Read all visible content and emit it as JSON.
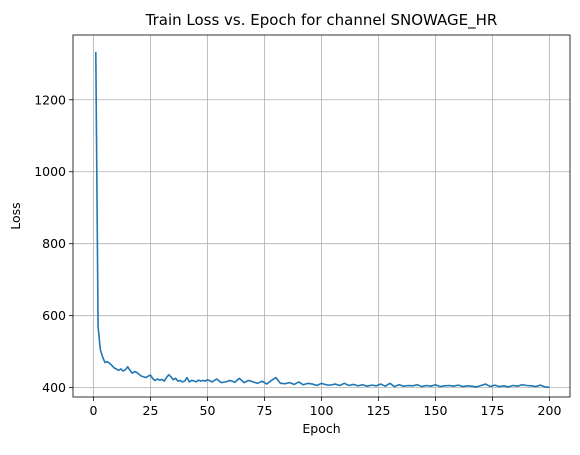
{
  "chart_data": {
    "type": "line",
    "title": "Train Loss vs. Epoch for channel SNOWAGE_HR",
    "xlabel": "Epoch",
    "ylabel": "Loss",
    "xlim": [
      -9,
      209
    ],
    "ylim": [
      374,
      1380
    ],
    "xticks": [
      0,
      25,
      50,
      75,
      100,
      125,
      150,
      175,
      200
    ],
    "yticks": [
      400,
      600,
      800,
      1000,
      1200
    ],
    "grid": true,
    "colors": {
      "series": "#1f77b4",
      "grid": "#b0b0b0"
    },
    "series": [
      {
        "x": [
          1,
          2,
          3,
          4,
          5,
          6,
          7,
          8,
          9,
          10,
          11,
          12,
          13,
          14,
          15,
          16,
          17,
          18,
          19,
          20,
          21,
          22,
          23,
          24,
          25,
          26,
          27,
          28,
          29,
          30,
          31,
          32,
          33,
          34,
          35,
          36,
          37,
          38,
          39,
          40,
          41,
          42,
          43,
          44,
          45,
          46,
          47,
          48,
          49,
          50,
          52,
          54,
          56,
          58,
          60,
          62,
          64,
          66,
          68,
          70,
          72,
          74,
          76,
          78,
          80,
          82,
          84,
          86,
          88,
          90,
          92,
          94,
          96,
          98,
          100,
          102,
          104,
          106,
          108,
          110,
          112,
          114,
          116,
          118,
          120,
          122,
          124,
          126,
          128,
          130,
          132,
          134,
          136,
          138,
          140,
          142,
          144,
          146,
          148,
          150,
          152,
          154,
          156,
          158,
          160,
          162,
          164,
          166,
          168,
          170,
          172,
          174,
          176,
          178,
          180,
          182,
          184,
          186,
          188,
          190,
          192,
          194,
          196,
          198,
          200
        ],
        "y": [
          1333,
          570,
          505,
          485,
          470,
          472,
          468,
          462,
          455,
          452,
          448,
          452,
          446,
          450,
          458,
          448,
          440,
          445,
          442,
          437,
          432,
          430,
          428,
          432,
          435,
          425,
          420,
          424,
          421,
          423,
          418,
          428,
          436,
          430,
          422,
          426,
          418,
          420,
          416,
          418,
          428,
          416,
          420,
          419,
          416,
          421,
          418,
          420,
          418,
          422,
          416,
          424,
          414,
          416,
          420,
          415,
          426,
          414,
          420,
          416,
          412,
          418,
          410,
          420,
          428,
          412,
          411,
          414,
          409,
          416,
          408,
          412,
          410,
          406,
          412,
          408,
          407,
          410,
          406,
          412,
          406,
          409,
          405,
          408,
          404,
          407,
          405,
          410,
          404,
          412,
          403,
          408,
          404,
          406,
          405,
          408,
          403,
          406,
          404,
          408,
          403,
          405,
          406,
          404,
          407,
          403,
          405,
          404,
          402,
          406,
          410,
          403,
          407,
          403,
          405,
          402,
          406,
          404,
          408,
          406,
          405,
          403,
          407,
          402,
          401
        ]
      }
    ]
  }
}
